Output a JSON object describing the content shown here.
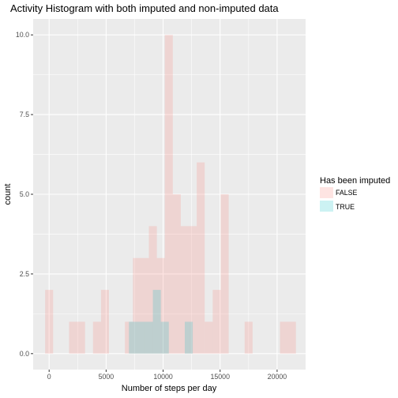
{
  "chart_data": {
    "type": "histogram",
    "title": "Activity Histogram with both imputed and non-imputed data",
    "xlabel": "Number of steps per day",
    "ylabel": "count",
    "xlim": [
      -1400,
      22500
    ],
    "ylim": [
      -0.5,
      10.5
    ],
    "x_ticks": [
      0,
      5000,
      10000,
      15000,
      20000
    ],
    "x_tick_labels": [
      "0",
      "5000",
      "10000",
      "15000",
      "20000"
    ],
    "y_ticks": [
      0,
      2.5,
      5,
      7.5,
      10
    ],
    "y_tick_labels": [
      "0.0",
      "2.5",
      "5.0",
      "7.5",
      "10.0"
    ],
    "grid": true,
    "bin_width": 700,
    "legend": {
      "title": "Has been imputed",
      "position": "right",
      "entries": [
        {
          "label": "FALSE",
          "color": "#f8766d"
        },
        {
          "label": "TRUE",
          "color": "#00bfc4"
        }
      ]
    },
    "series": [
      {
        "name": "FALSE",
        "color": "#f8766d",
        "bins": [
          {
            "x0": -350,
            "x1": 350,
            "count": 2
          },
          {
            "x0": 1750,
            "x1": 2450,
            "count": 1
          },
          {
            "x0": 2450,
            "x1": 3150,
            "count": 1
          },
          {
            "x0": 3850,
            "x1": 4550,
            "count": 1
          },
          {
            "x0": 4550,
            "x1": 5250,
            "count": 2
          },
          {
            "x0": 6650,
            "x1": 7350,
            "count": 1
          },
          {
            "x0": 7350,
            "x1": 8050,
            "count": 3
          },
          {
            "x0": 8050,
            "x1": 8750,
            "count": 3
          },
          {
            "x0": 8750,
            "x1": 9450,
            "count": 4
          },
          {
            "x0": 9450,
            "x1": 10150,
            "count": 3
          },
          {
            "x0": 10150,
            "x1": 10850,
            "count": 10
          },
          {
            "x0": 10850,
            "x1": 11550,
            "count": 5
          },
          {
            "x0": 11550,
            "x1": 12250,
            "count": 4
          },
          {
            "x0": 12250,
            "x1": 12950,
            "count": 4
          },
          {
            "x0": 12950,
            "x1": 13650,
            "count": 6
          },
          {
            "x0": 13650,
            "x1": 14350,
            "count": 1
          },
          {
            "x0": 14350,
            "x1": 15050,
            "count": 2
          },
          {
            "x0": 15050,
            "x1": 15750,
            "count": 5
          },
          {
            "x0": 17150,
            "x1": 17850,
            "count": 1
          },
          {
            "x0": 20250,
            "x1": 20950,
            "count": 1
          },
          {
            "x0": 20950,
            "x1": 21650,
            "count": 1
          }
        ]
      },
      {
        "name": "TRUE",
        "color": "#00bfc4",
        "bins": [
          {
            "x0": 7000,
            "x1": 7700,
            "count": 1
          },
          {
            "x0": 7700,
            "x1": 8400,
            "count": 1
          },
          {
            "x0": 8400,
            "x1": 9100,
            "count": 1
          },
          {
            "x0": 9100,
            "x1": 9800,
            "count": 2
          },
          {
            "x0": 9800,
            "x1": 10500,
            "count": 1
          },
          {
            "x0": 11900,
            "x1": 12600,
            "count": 1
          }
        ]
      }
    ]
  }
}
